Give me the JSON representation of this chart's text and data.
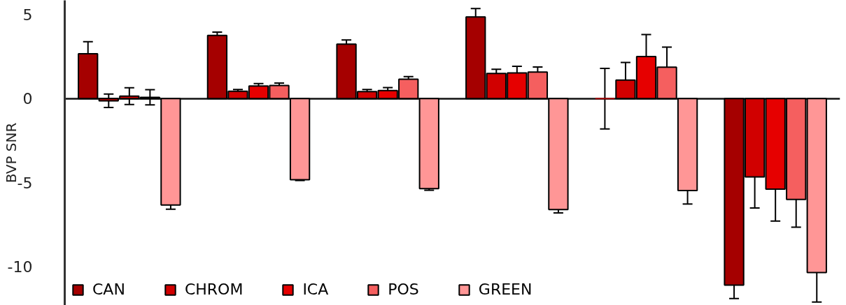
{
  "chart_data": {
    "type": "bar",
    "ylabel": "BVP SNR",
    "categories": [
      null,
      null,
      null,
      null,
      null,
      null
    ],
    "ylim": [
      -12.3,
      5.85
    ],
    "yticks": [
      5,
      0,
      -5,
      -10
    ],
    "legend": "bottom left",
    "tick_labels": "y",
    "series": [
      {
        "name": "CAN",
        "color": "#a50000",
        "values": [
          2.67,
          3.76,
          3.24,
          4.86,
          0,
          -11.1
        ],
        "errors": [
          0.72,
          0.2,
          0.25,
          0.5,
          1.8,
          0.8
        ]
      },
      {
        "name": "CHROM",
        "color": "#d10000",
        "values": [
          -0.13,
          0.44,
          0.42,
          1.5,
          1.1,
          -4.66
        ],
        "errors": [
          0.4,
          0.1,
          0.12,
          0.25,
          1.05,
          1.85
        ]
      },
      {
        "name": "ICA",
        "color": "#e60000",
        "values": [
          0.15,
          0.75,
          0.48,
          1.53,
          2.51,
          -5.38
        ],
        "errors": [
          0.5,
          0.15,
          0.18,
          0.4,
          1.3,
          1.9
        ]
      },
      {
        "name": "POS",
        "color": "#f55f5f",
        "values": [
          0.08,
          0.78,
          1.16,
          1.58,
          1.87,
          -6.0
        ],
        "errors": [
          0.45,
          0.15,
          0.15,
          0.3,
          1.2,
          1.65
        ]
      },
      {
        "name": "GREEN",
        "color": "#ff9696",
        "values": [
          -6.33,
          -4.82,
          -5.35,
          -6.6,
          -5.47,
          -10.35
        ],
        "errors": [
          0.25,
          0.05,
          0.1,
          0.2,
          0.8,
          1.75
        ]
      }
    ]
  }
}
